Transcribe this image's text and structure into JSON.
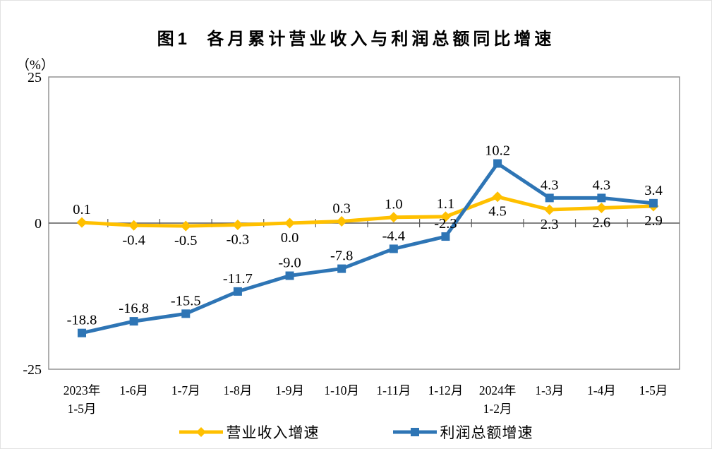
{
  "page": {
    "background": "#FFFFFF"
  },
  "chart_data": {
    "type": "line",
    "title": "图1  各月累计营业收入与利润总额同比增速",
    "y_unit": "（%）",
    "categories": [
      "2023年\n1-5月",
      "1-6月",
      "1-7月",
      "1-8月",
      "1-9月",
      "1-10月",
      "1-11月",
      "1-12月",
      "2024年\n1-2月",
      "1-3月",
      "1-4月",
      "1-5月"
    ],
    "y_axis": {
      "min": -25,
      "max": 25,
      "ticks": [
        25,
        0,
        -25
      ]
    },
    "grid": "zero-line-only",
    "legend_position": "bottom",
    "axis_color": "#8C8C8C",
    "zero_line_color": "#595959",
    "text_color": "#000000",
    "series": [
      {
        "name": "营业收入增速",
        "color": "#FFC000",
        "marker": "diamond",
        "values": [
          0.1,
          -0.4,
          -0.5,
          -0.3,
          0.0,
          0.3,
          1.0,
          1.1,
          4.5,
          2.3,
          2.6,
          2.9
        ],
        "label_positions": [
          "above",
          "below",
          "below",
          "below",
          "below",
          "above",
          "above",
          "above",
          "below",
          "below",
          "below",
          "below"
        ]
      },
      {
        "name": "利润总额增速",
        "color": "#2E75B5",
        "marker": "square",
        "values": [
          -18.8,
          -16.8,
          -15.5,
          -11.7,
          -9.0,
          -7.8,
          -4.4,
          -2.3,
          10.2,
          4.3,
          4.3,
          3.4
        ],
        "label_positions": [
          "above",
          "above",
          "above",
          "above",
          "above",
          "above",
          "above",
          "above",
          "above",
          "above",
          "above",
          "above"
        ]
      }
    ]
  }
}
